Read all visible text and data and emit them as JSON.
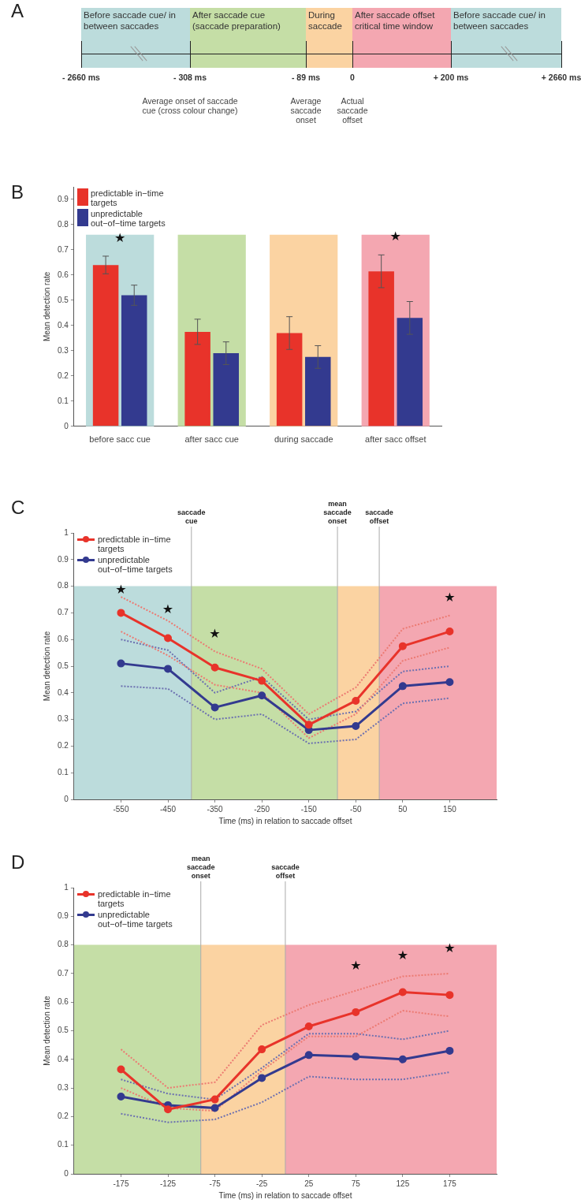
{
  "chart_data": [
    {
      "type": "other",
      "title": "A",
      "categories": [
        "Before saccade cue/ in between saccades",
        "After saccade cue (saccade preparation)",
        "During saccade",
        "After saccade offset critical time window",
        "Before saccade cue/ in between saccades"
      ],
      "colors": [
        "#bcdcdc",
        "#c5dea6",
        "#fbd3a2",
        "#f4a7b1",
        "#bcdcdc"
      ],
      "annotations": [
        "- 2660 ms",
        "- 308 ms",
        "- 89 ms",
        "0",
        "+ 200 ms",
        "+ 2660 ms",
        "Average onset of saccade cue (cross colour change)",
        "Average saccade onset",
        "Actual saccade offset"
      ]
    },
    {
      "type": "bar",
      "title": "B",
      "ylabel": "Mean detection rate",
      "categories": [
        "before sacc cue",
        "after sacc cue",
        "during saccade",
        "after sacc offset"
      ],
      "series": [
        {
          "name": "predictable in−time targets",
          "color": "#e8332a",
          "values": [
            0.64,
            0.375,
            0.37,
            0.615
          ],
          "errors": [
            0.035,
            0.05,
            0.065,
            0.065
          ]
        },
        {
          "name": "unpredictable out−of−time targets",
          "color": "#333a8f",
          "values": [
            0.52,
            0.29,
            0.275,
            0.43
          ],
          "errors": [
            0.04,
            0.045,
            0.045,
            0.065
          ]
        }
      ],
      "ylim": [
        0,
        0.95
      ],
      "yticks": [
        0,
        0.1,
        0.2,
        0.3,
        0.4,
        0.5,
        0.6,
        0.7,
        0.8,
        0.9
      ],
      "legend": "top left",
      "bands": [
        {
          "axis": "x",
          "from": "before sacc cue",
          "to": "before sacc cue",
          "color": "#bcdcdc"
        },
        {
          "axis": "x",
          "from": "after sacc cue",
          "to": "after sacc cue",
          "color": "#c5dea6"
        },
        {
          "axis": "x",
          "from": "during saccade",
          "to": "during saccade",
          "color": "#fbd3a2"
        },
        {
          "axis": "x",
          "from": "after sacc offset",
          "to": "after sacc offset",
          "color": "#f4a7b1"
        }
      ],
      "annotations": [
        {
          "text": "★",
          "x": "before sacc cue"
        },
        {
          "text": "★",
          "x": "after sacc offset"
        }
      ]
    },
    {
      "type": "line",
      "title": "C",
      "xlabel": "Time (ms) in relation to saccade offset",
      "ylabel": "Mean detection rate",
      "x": [
        -550,
        -450,
        -350,
        -250,
        -150,
        -50,
        50,
        150
      ],
      "series": [
        {
          "name": "predictable in−time targets",
          "color": "#e8332a",
          "values": [
            0.7,
            0.605,
            0.495,
            0.445,
            0.28,
            0.37,
            0.575,
            0.63
          ]
        },
        {
          "name": "unpredictable out−of−time targets",
          "color": "#333a8f",
          "values": [
            0.51,
            0.49,
            0.345,
            0.39,
            0.26,
            0.275,
            0.425,
            0.44
          ]
        },
        {
          "color": "#ec7a72",
          "line_style": "dotted",
          "marker": "none",
          "values": [
            0.63,
            0.54,
            0.43,
            0.4,
            0.23,
            0.32,
            0.52,
            0.57
          ]
        },
        {
          "color": "#ec7a72",
          "line_style": "dotted",
          "marker": "none",
          "values": [
            0.76,
            0.67,
            0.555,
            0.49,
            0.32,
            0.42,
            0.64,
            0.69
          ]
        },
        {
          "color": "#6c70b0",
          "line_style": "dotted",
          "marker": "none",
          "values": [
            0.425,
            0.415,
            0.3,
            0.32,
            0.21,
            0.225,
            0.36,
            0.38
          ]
        },
        {
          "color": "#6c70b0",
          "line_style": "dotted",
          "marker": "none",
          "values": [
            0.6,
            0.56,
            0.4,
            0.46,
            0.3,
            0.33,
            0.48,
            0.5
          ]
        }
      ],
      "xlim": [
        -650,
        250
      ],
      "xticks": [
        -550,
        -450,
        -350,
        -250,
        -150,
        -50,
        50,
        150
      ],
      "ylim": [
        0,
        1
      ],
      "yticks": [
        0,
        0.1,
        0.2,
        0.3,
        0.4,
        0.5,
        0.6,
        0.7,
        0.8,
        0.9,
        1
      ],
      "legend": "top left",
      "marker": "circle",
      "bands": [
        {
          "axis": "x",
          "from": -650,
          "to": -400,
          "color": "#bcdcdc"
        },
        {
          "axis": "x",
          "from": -400,
          "to": -89,
          "color": "#c5dea6"
        },
        {
          "axis": "x",
          "from": -89,
          "to": 0,
          "color": "#fbd3a2"
        },
        {
          "axis": "x",
          "from": 0,
          "to": 250,
          "color": "#f4a7b1"
        }
      ],
      "ref_lines": [
        {
          "axis": "x",
          "value": -400,
          "label": "saccade cue"
        },
        {
          "axis": "x",
          "value": -89,
          "label": "mean saccade onset"
        },
        {
          "axis": "x",
          "value": 0,
          "label": "saccade offset"
        }
      ],
      "annotations": [
        "★",
        "★",
        "★",
        "★"
      ]
    },
    {
      "type": "line",
      "title": "D",
      "xlabel": "Time (ms) in relation to saccade offset",
      "ylabel": "Mean detection rate",
      "x": [
        -175,
        -125,
        -75,
        -25,
        25,
        75,
        125,
        175
      ],
      "series": [
        {
          "name": "predictable in−time targets",
          "color": "#e8332a",
          "values": [
            0.365,
            0.225,
            0.26,
            0.435,
            0.515,
            0.565,
            0.635,
            0.625
          ]
        },
        {
          "name": "unpredictable out−of−time targets",
          "color": "#333a8f",
          "values": [
            0.27,
            0.24,
            0.23,
            0.335,
            0.415,
            0.41,
            0.4,
            0.43
          ]
        },
        {
          "color": "#ec7a72",
          "line_style": "dotted",
          "marker": "none",
          "values": [
            0.3,
            0.23,
            0.22,
            0.36,
            0.48,
            0.48,
            0.57,
            0.55
          ]
        },
        {
          "color": "#ec7a72",
          "line_style": "dotted",
          "marker": "none",
          "values": [
            0.435,
            0.3,
            0.32,
            0.52,
            0.59,
            0.64,
            0.69,
            0.7
          ]
        },
        {
          "color": "#6c70b0",
          "line_style": "dotted",
          "marker": "none",
          "values": [
            0.21,
            0.18,
            0.19,
            0.25,
            0.34,
            0.33,
            0.33,
            0.355
          ]
        },
        {
          "color": "#6c70b0",
          "line_style": "dotted",
          "marker": "none",
          "values": [
            0.33,
            0.28,
            0.26,
            0.37,
            0.49,
            0.49,
            0.47,
            0.5
          ]
        }
      ],
      "xlim": [
        -225,
        225
      ],
      "xticks": [
        -175,
        -125,
        -75,
        -25,
        25,
        75,
        125,
        175
      ],
      "ylim": [
        0,
        1
      ],
      "yticks": [
        0,
        0.1,
        0.2,
        0.3,
        0.4,
        0.5,
        0.6,
        0.7,
        0.8,
        0.9,
        1
      ],
      "legend": "top left",
      "marker": "circle",
      "bands": [
        {
          "axis": "x",
          "from": -225,
          "to": -90,
          "color": "#c5dea6"
        },
        {
          "axis": "x",
          "from": -90,
          "to": 0,
          "color": "#fbd3a2"
        },
        {
          "axis": "x",
          "from": 0,
          "to": 225,
          "color": "#f4a7b1"
        }
      ],
      "ref_lines": [
        {
          "axis": "x",
          "value": -90,
          "label": "mean saccade onset"
        },
        {
          "axis": "x",
          "value": 0,
          "label": "saccade offset"
        }
      ],
      "annotations": [
        "★",
        "★",
        "★"
      ]
    }
  ]
}
